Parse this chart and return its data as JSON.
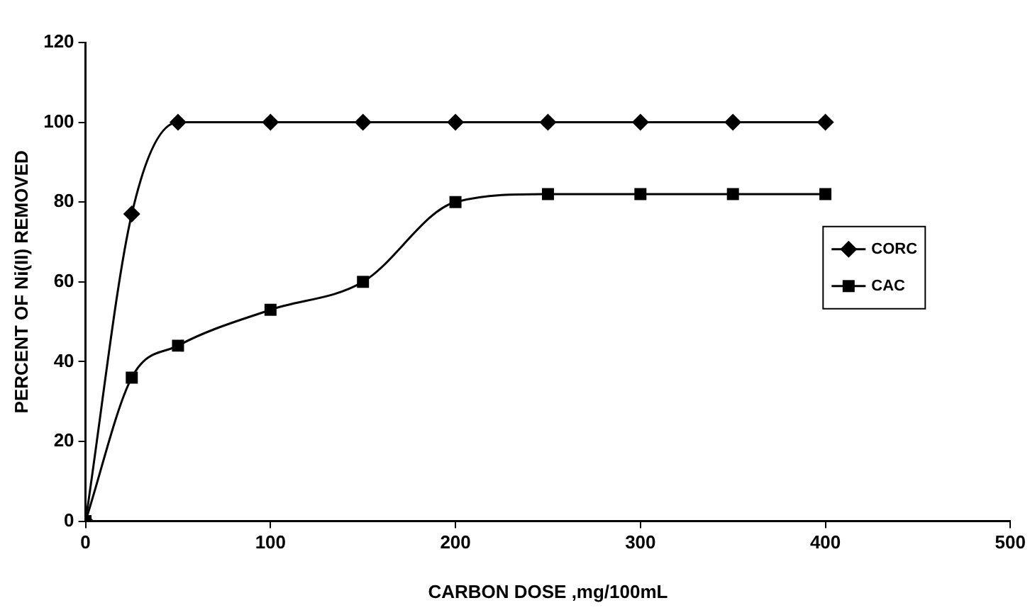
{
  "chart_data": {
    "type": "line",
    "xlabel": "CARBON DOSE ,mg/100mL",
    "ylabel": "PERCENT OF Ni(II) REMOVED",
    "x": [
      0,
      25,
      50,
      100,
      150,
      200,
      250,
      300,
      350,
      400
    ],
    "series": [
      {
        "name": "CORC",
        "color": "#000000",
        "marker": "diamond",
        "values": [
          0,
          77,
          100,
          100,
          100,
          100,
          100,
          100,
          100,
          100
        ]
      },
      {
        "name": "CAC",
        "color": "#000000",
        "marker": "square",
        "values": [
          0,
          36,
          44,
          53,
          60,
          80,
          82,
          82,
          82,
          82
        ]
      }
    ],
    "xlim": [
      0,
      500
    ],
    "xticks": [
      0,
      100,
      200,
      300,
      400,
      500
    ],
    "ylim": [
      0,
      120
    ],
    "yticks": [
      0,
      20,
      40,
      60,
      80,
      100,
      120
    ],
    "grid": false,
    "legend": "right",
    "line_style": "solid"
  }
}
